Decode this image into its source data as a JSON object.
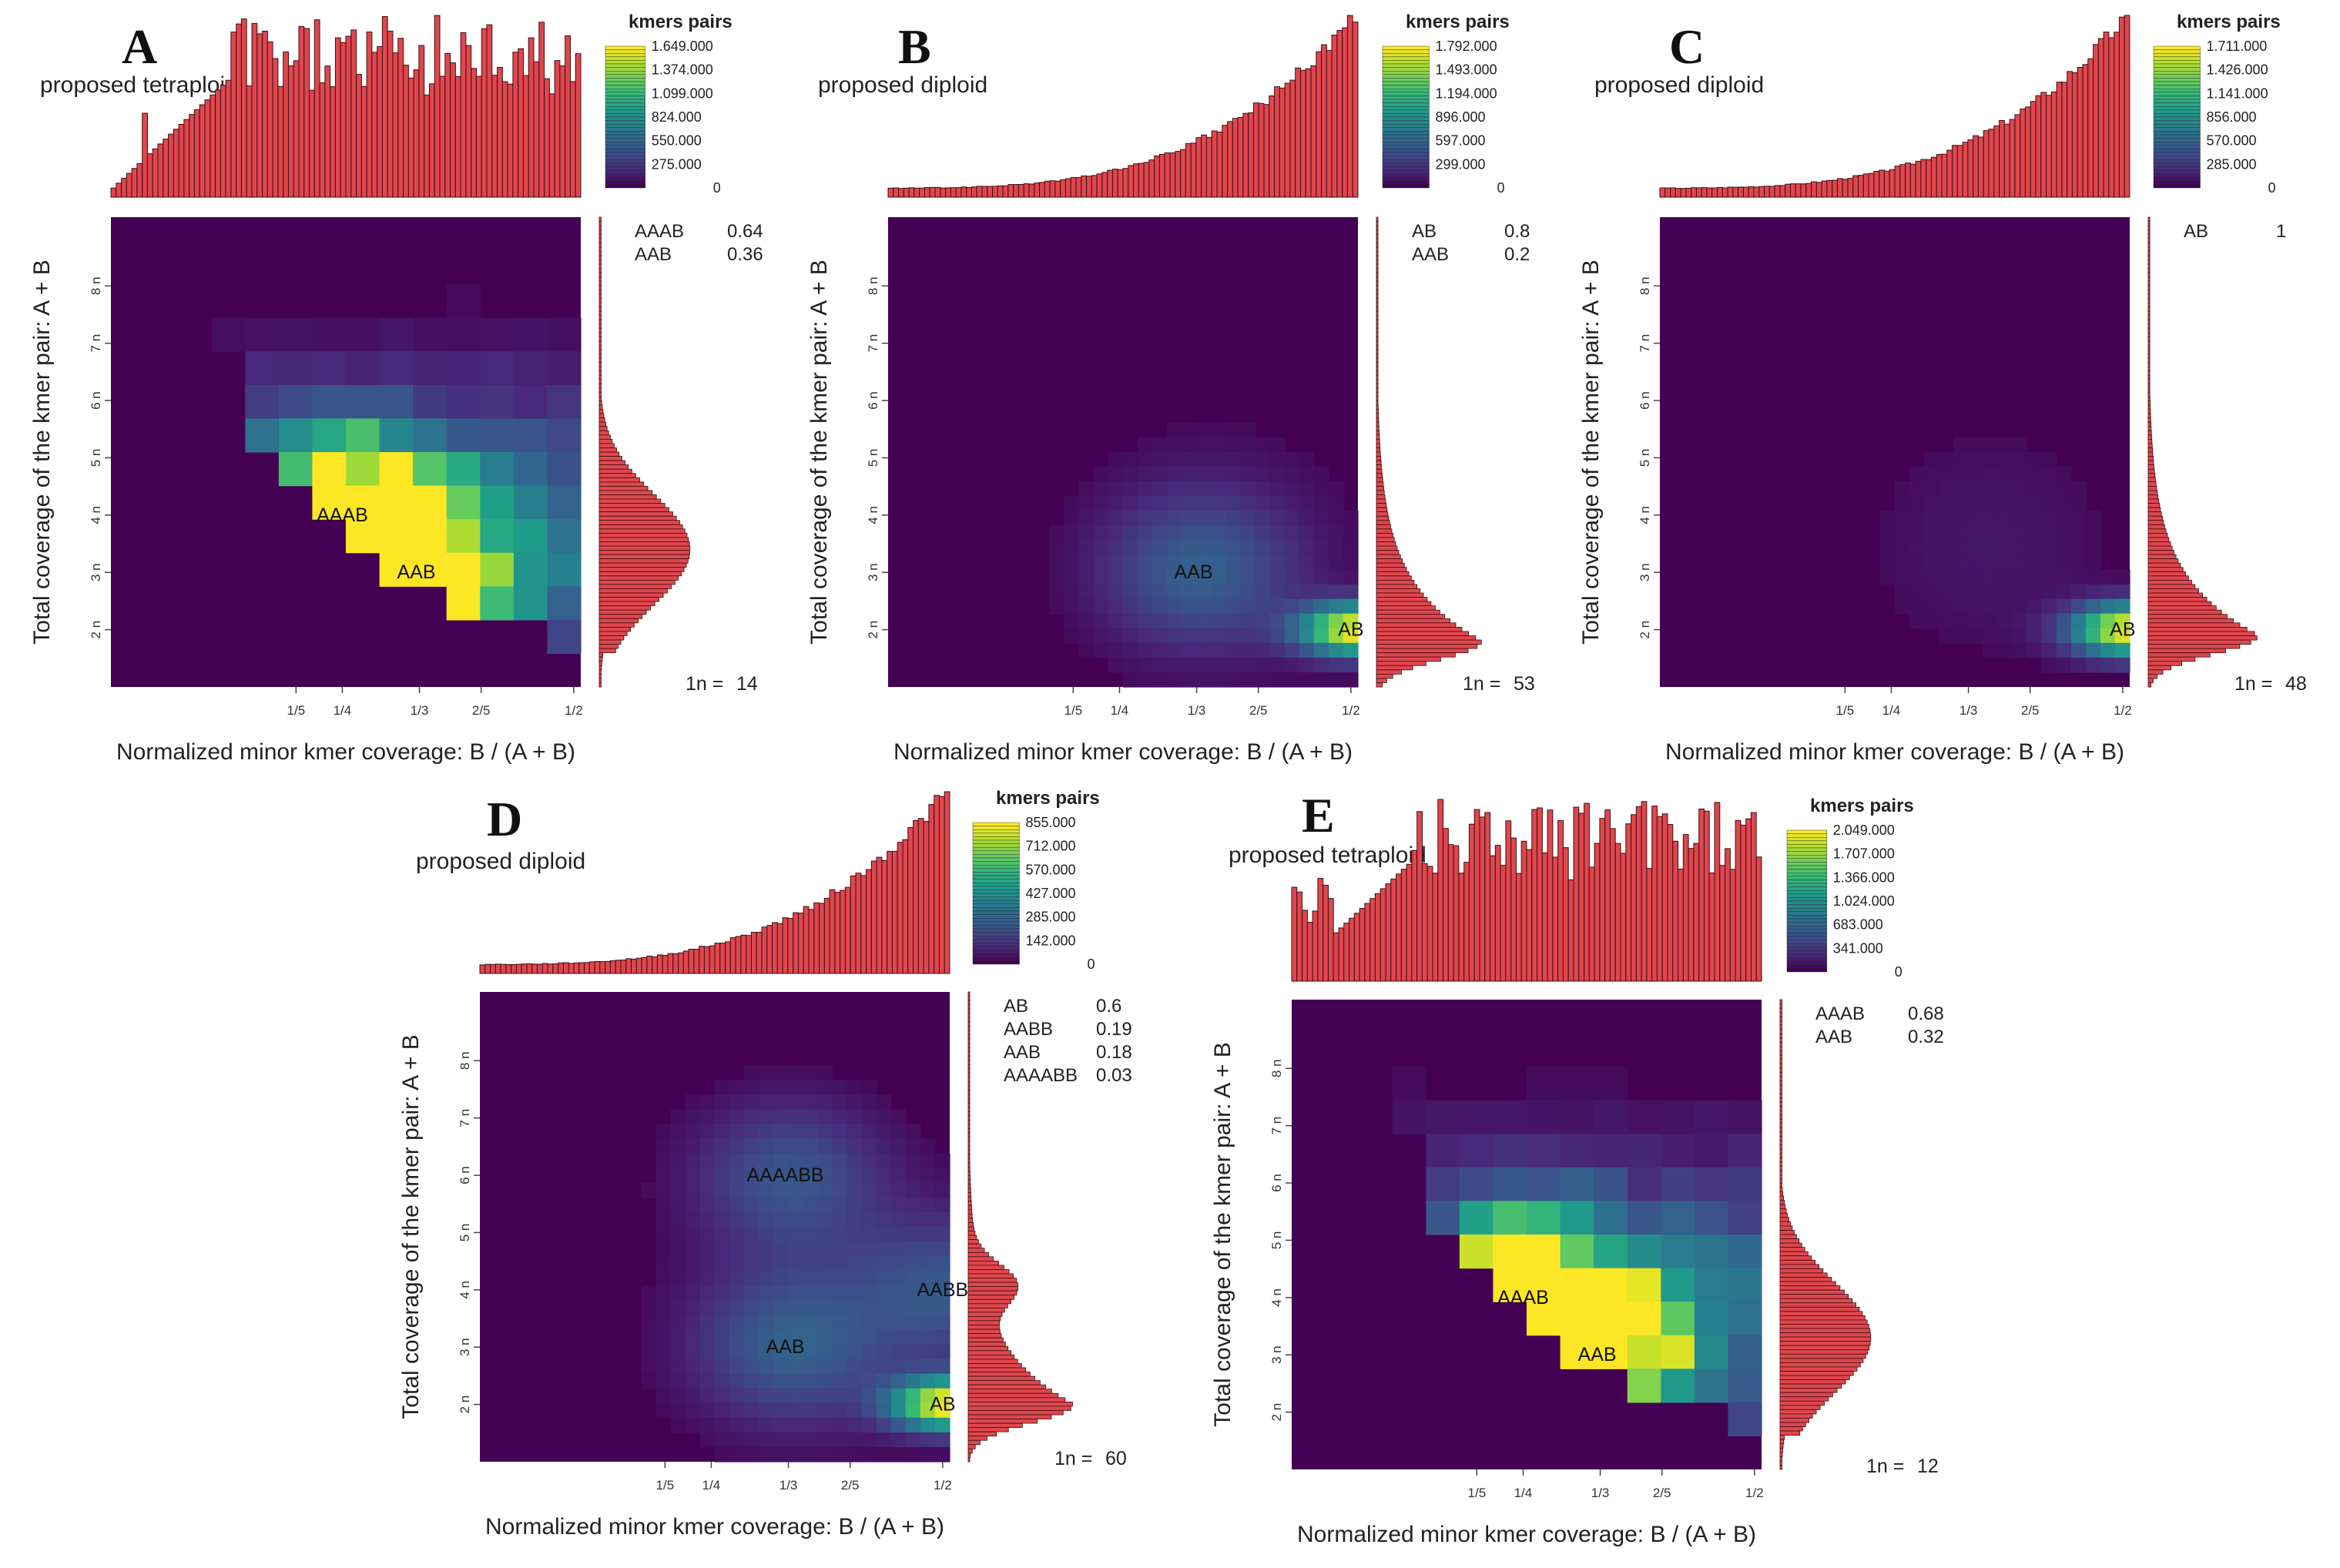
{
  "figure": {
    "common": {
      "xlabel": "Normalized minor kmer coverage: B / (A + B)",
      "ylabel": "Total coverage of the kmer pair: A + B",
      "legend_title": "kmers pairs",
      "x_tick_labels": [
        "1/5",
        "1/4",
        "1/3",
        "2/5",
        "1/2"
      ],
      "y_tick_labels": [
        "2 n",
        "3 n",
        "4 n",
        "5 n",
        "6 n",
        "7 n",
        "8 n"
      ]
    }
  },
  "chart_data": [
    {
      "type": "heatmap",
      "panel": "A",
      "subtitle": "proposed tetraploid",
      "colorbar_ticks": [
        "1.649.000",
        "1.374.000",
        "1.099.000",
        "824.000",
        "550.000",
        "275.000",
        "0"
      ],
      "ratios": [
        {
          "label": "AAAB",
          "value": "0.64"
        },
        {
          "label": "AAB",
          "value": "0.36"
        }
      ],
      "one_n_label": "1n =",
      "one_n_value": "14",
      "peaks": [
        {
          "label": "AAAB",
          "x": 0.25,
          "y": 4
        },
        {
          "label": "AAB",
          "x": 0.33,
          "y": 3
        }
      ],
      "grid_style": "coarse",
      "ploidy_pattern": "tetraploid",
      "hist_profile": "flat",
      "right_hist_mode": 3.4
    },
    {
      "type": "heatmap",
      "panel": "B",
      "subtitle": "proposed diploid",
      "colorbar_ticks": [
        "1.792.000",
        "1.493.000",
        "1.194.000",
        "896.000",
        "597.000",
        "299.000",
        "0"
      ],
      "ratios": [
        {
          "label": "AB",
          "value": "0.8"
        },
        {
          "label": "AAB",
          "value": "0.2"
        }
      ],
      "one_n_label": "1n =",
      "one_n_value": "53",
      "peaks": [
        {
          "label": "AAB",
          "x": 0.33,
          "y": 3
        },
        {
          "label": "AB",
          "x": 0.5,
          "y": 2
        }
      ],
      "grid_style": "fine",
      "ploidy_pattern": "diploid",
      "hist_profile": "rising",
      "right_hist_mode": 1.8
    },
    {
      "type": "heatmap",
      "panel": "C",
      "subtitle": "proposed diploid",
      "colorbar_ticks": [
        "1.711.000",
        "1.426.000",
        "1.141.000",
        "856.000",
        "570.000",
        "285.000",
        "0"
      ],
      "ratios": [
        {
          "label": "AB",
          "value": "1"
        }
      ],
      "one_n_label": "1n =",
      "one_n_value": "48",
      "peaks": [
        {
          "label": "AB",
          "x": 0.5,
          "y": 2
        }
      ],
      "grid_style": "fine",
      "ploidy_pattern": "diploid",
      "hist_profile": "rising",
      "right_hist_mode": 1.9
    },
    {
      "type": "heatmap",
      "panel": "D",
      "subtitle": "proposed diploid",
      "colorbar_ticks": [
        "855.000",
        "712.000",
        "570.000",
        "427.000",
        "285.000",
        "142.000",
        "0"
      ],
      "ratios": [
        {
          "label": "AB",
          "value": "0.6"
        },
        {
          "label": "AABB",
          "value": "0.19"
        },
        {
          "label": "AAB",
          "value": "0.18"
        },
        {
          "label": "AAAABB",
          "value": "0.03"
        }
      ],
      "one_n_label": "1n =",
      "one_n_value": "60",
      "peaks": [
        {
          "label": "AAAABB",
          "x": 0.33,
          "y": 6
        },
        {
          "label": "AABB",
          "x": 0.5,
          "y": 4
        },
        {
          "label": "AAB",
          "x": 0.33,
          "y": 3
        },
        {
          "label": "AB",
          "x": 0.5,
          "y": 2
        }
      ],
      "grid_style": "fine",
      "ploidy_pattern": "diploid",
      "hist_profile": "rising",
      "right_hist_mode": 2.0
    },
    {
      "type": "heatmap",
      "panel": "E",
      "subtitle": "proposed tetraploid",
      "colorbar_ticks": [
        "2.049.000",
        "1.707.000",
        "1.366.000",
        "1.024.000",
        "683.000",
        "341.000",
        "0"
      ],
      "ratios": [
        {
          "label": "AAAB",
          "value": "0.68"
        },
        {
          "label": "AAB",
          "value": "0.32"
        }
      ],
      "one_n_label": "1n =",
      "one_n_value": "12",
      "peaks": [
        {
          "label": "AAAB",
          "x": 0.25,
          "y": 4
        },
        {
          "label": "AAB",
          "x": 0.33,
          "y": 3
        }
      ],
      "grid_style": "coarse",
      "ploidy_pattern": "tetraploid",
      "hist_profile": "flat",
      "right_hist_mode": 3.3
    }
  ]
}
